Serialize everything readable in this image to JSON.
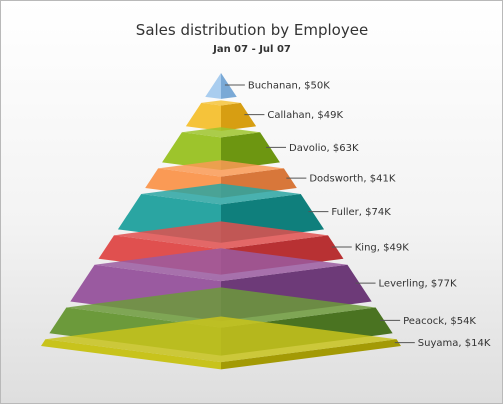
{
  "chart_data": {
    "type": "pyramid",
    "title": "Sales distribution by Employee",
    "subtitle": "Jan 07 - Jul 07",
    "categories": [
      "Buchanan",
      "Callahan",
      "Davolio",
      "Dodsworth",
      "Fuller",
      "King",
      "Leverling",
      "Peacock",
      "Suyama"
    ],
    "values": [
      50,
      49,
      63,
      41,
      74,
      49,
      77,
      54,
      14
    ],
    "labels": [
      "Buchanan, $50K",
      "Callahan, $49K",
      "Davolio, $63K",
      "Dodsworth, $41K",
      "Fuller, $74K",
      "King, $49K",
      "Leverling, $77K",
      "Peacock, $54K",
      "Suyama, $14K"
    ],
    "value_unit": "$K",
    "colors": [
      "#a9cdef",
      "#f5c33a",
      "#9dc42c",
      "#fa9a55",
      "#2aa5a2",
      "#e0504f",
      "#9a5aa0",
      "#6c9a3b",
      "#c8c31c"
    ],
    "dark_colors": [
      "#7aa9d6",
      "#d79e12",
      "#6d9611",
      "#d8773a",
      "#0f7f7c",
      "#b83133",
      "#6d3a78",
      "#4a7321",
      "#a39a05"
    ]
  }
}
